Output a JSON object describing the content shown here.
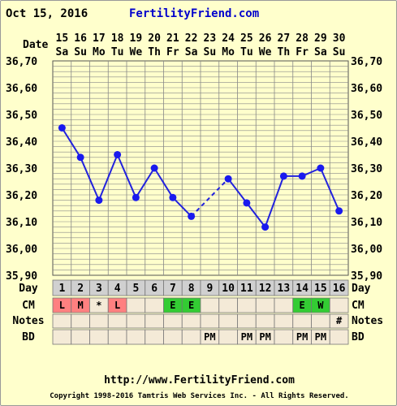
{
  "header": {
    "date": "Oct 15, 2016",
    "brand": "FertilityFriend.com"
  },
  "footer": {
    "url": "http://www.FertilityFriend.com",
    "copyright": "Copyright 1998-2016 Tamtris Web Services Inc. - All Rights Reserved."
  },
  "row_labels": {
    "date": "Date",
    "day": "Day",
    "cm": "CM",
    "notes": "Notes",
    "bd": "BD"
  },
  "colors": {
    "background": "#ffffcc",
    "grid": "#888888",
    "line": "#2222dd",
    "marker": "#1a1aee",
    "menses": "#ff8080",
    "egg_white": "#33cc33",
    "row_bg": "#f4ead7",
    "day_row_bg": "#d0d0d0"
  },
  "chart_data": {
    "type": "line",
    "title": "",
    "ylabel": "",
    "xlabel": "",
    "ylim": [
      35.9,
      36.7
    ],
    "y_ticks": [
      "36,70",
      "36,60",
      "36,50",
      "36,40",
      "36,30",
      "36,20",
      "36,10",
      "36,00",
      "35,90"
    ],
    "dates": [
      "15",
      "16",
      "17",
      "18",
      "19",
      "20",
      "21",
      "22",
      "23",
      "24",
      "25",
      "26",
      "27",
      "28",
      "29",
      "30"
    ],
    "weekdays": [
      "Sa",
      "Su",
      "Mo",
      "Tu",
      "We",
      "Th",
      "Fr",
      "Sa",
      "Su",
      "Mo",
      "Tu",
      "We",
      "Th",
      "Fr",
      "Sa",
      "Su"
    ],
    "cycle_days": [
      "1",
      "2",
      "3",
      "4",
      "5",
      "6",
      "7",
      "8",
      "9",
      "10",
      "11",
      "12",
      "13",
      "14",
      "15",
      "16"
    ],
    "temperatures": [
      36.45,
      36.34,
      36.18,
      36.35,
      36.19,
      36.3,
      36.19,
      36.12,
      null,
      36.26,
      36.17,
      36.08,
      36.27,
      36.27,
      36.3,
      36.14
    ],
    "dashed_gap": {
      "from_day": 8,
      "to_day": 10
    },
    "cervical_mucus": [
      "L",
      "M",
      "*",
      "L",
      "",
      "",
      "E",
      "E",
      "",
      "",
      "",
      "",
      "",
      "E",
      "W",
      ""
    ],
    "notes": [
      "",
      "",
      "",
      "",
      "",
      "",
      "",
      "",
      "",
      "",
      "",
      "",
      "",
      "",
      "",
      "#"
    ],
    "bd": [
      "",
      "",
      "",
      "",
      "",
      "",
      "",
      "",
      "PM",
      "",
      "PM",
      "PM",
      "",
      "PM",
      "PM",
      ""
    ]
  }
}
